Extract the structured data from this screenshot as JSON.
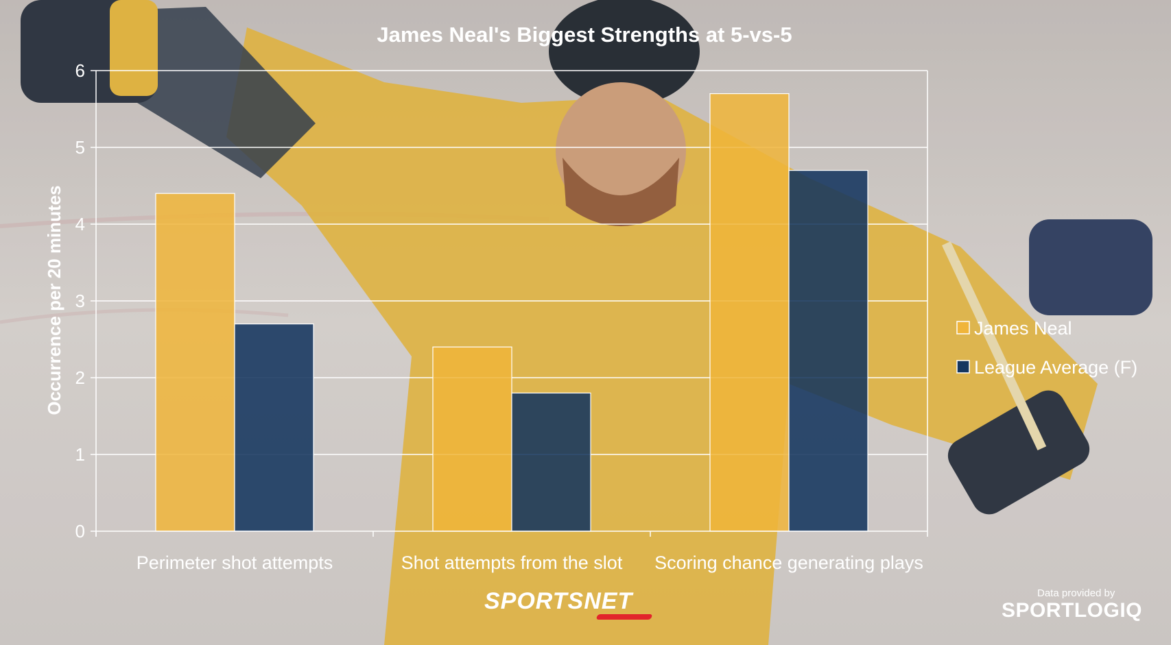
{
  "colors": {
    "james_neal": "#f0b53a",
    "league_average": "#15365f",
    "text": "#ffffff",
    "grid": "#ffffff",
    "jersey": "#e0ae2f",
    "background": "#cfc9c6"
  },
  "chart_data": {
    "type": "bar",
    "title": "James Neal's Biggest Strengths at 5-vs-5",
    "xlabel": "",
    "ylabel": "Occurrence per 20 minutes",
    "ylim": [
      0,
      6
    ],
    "yticks": [
      "0",
      "1",
      "2",
      "3",
      "4",
      "5",
      "6"
    ],
    "categories": [
      "Perimeter shot attempts",
      "Shot attempts from the slot",
      "Scoring chance generating plays"
    ],
    "series": [
      {
        "name": "James Neal",
        "values": [
          4.4,
          2.4,
          5.7
        ],
        "color": "#f0b53a"
      },
      {
        "name": "League Average (F)",
        "values": [
          2.7,
          1.8,
          4.7
        ],
        "color": "#15365f"
      }
    ],
    "grid": true,
    "legend_position": "right"
  },
  "branding": {
    "sportsnet": "SPORTSNET",
    "data_credit": "Data provided by",
    "sportlogiq": "SPORTLOGIQ"
  }
}
